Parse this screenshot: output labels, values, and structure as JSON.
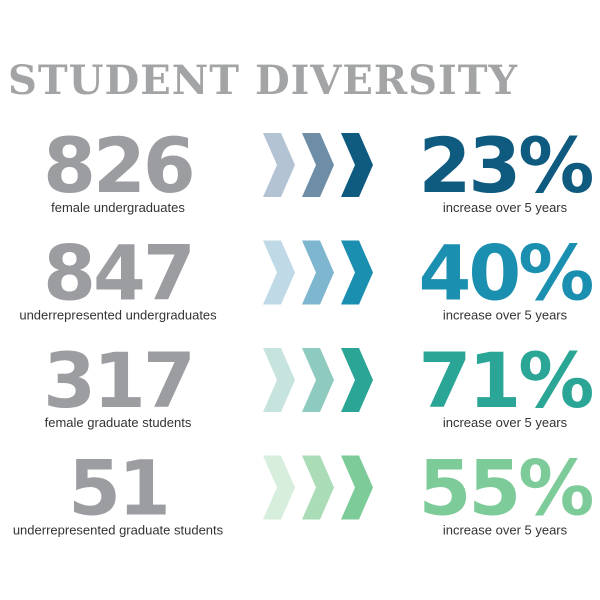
{
  "title": "STUDENT DIVERSITY",
  "rows": [
    {
      "number": "826",
      "label": "female undergraduates",
      "percent": "23%",
      "caption": "increase over 5 years"
    },
    {
      "number": "847",
      "label": "underrepresented undergraduates",
      "percent": "40%",
      "caption": "increase over 5 years"
    },
    {
      "number": "317",
      "label": "female graduate students",
      "percent": "71%",
      "caption": "increase over 5 years"
    },
    {
      "number": "51",
      "label": "underrepresented graduate students",
      "percent": "55%",
      "caption": "increase over 5 years"
    }
  ]
}
